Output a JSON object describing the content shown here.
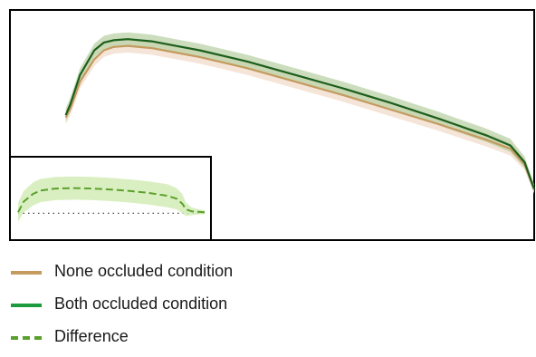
{
  "chart_data": {
    "type": "line",
    "main_panel": {
      "xlim": [
        0,
        100
      ],
      "ylim": [
        0,
        100
      ],
      "series": [
        {
          "name": "None occluded condition",
          "color": "#c59a5f",
          "band_color": "#f1dccb",
          "x": [
            2,
            3,
            5,
            8,
            10,
            12,
            15,
            20,
            25,
            30,
            40,
            50,
            60,
            70,
            80,
            90,
            95,
            98,
            100
          ],
          "y": [
            54,
            58,
            70,
            80,
            84,
            85.5,
            86,
            85,
            83,
            81,
            76,
            70,
            64,
            57.5,
            51,
            44,
            40,
            33,
            22
          ],
          "band": [
            3,
            3,
            3,
            3,
            3,
            3,
            3,
            3,
            3,
            3,
            3,
            3,
            3,
            3,
            3,
            3,
            3,
            2.5,
            2
          ]
        },
        {
          "name": "Both occluded condition",
          "color": "#1c5e1c",
          "band_color": "#b9d1a5",
          "x": [
            2,
            3,
            5,
            8,
            10,
            12,
            15,
            20,
            25,
            30,
            40,
            50,
            60,
            70,
            80,
            90,
            95,
            98,
            100
          ],
          "y": [
            55,
            60,
            73,
            84,
            87.5,
            88.5,
            89,
            88,
            86,
            84,
            79,
            73,
            67,
            60.5,
            53.5,
            46,
            41.5,
            34,
            22
          ],
          "band": [
            3,
            3,
            3,
            3,
            3,
            3,
            3,
            3,
            3,
            3,
            3,
            3,
            3,
            3,
            3,
            3,
            3,
            2.5,
            2
          ]
        }
      ]
    },
    "inset_panel": {
      "xlim": [
        0,
        100
      ],
      "ylim": [
        -1,
        5
      ],
      "baseline": 0,
      "series": [
        {
          "name": "Difference",
          "color": "#5aa02c",
          "band_color": "#d3ecb6",
          "style": "dashed",
          "x": [
            0,
            3,
            8,
            12,
            20,
            30,
            40,
            50,
            60,
            70,
            80,
            85,
            88,
            90,
            93,
            96,
            100
          ],
          "y": [
            0.1,
            1.2,
            2.0,
            2.35,
            2.55,
            2.6,
            2.55,
            2.45,
            2.3,
            2.1,
            1.8,
            1.5,
            1.0,
            0.4,
            0.2,
            0.15,
            0.1
          ],
          "band": [
            1.0,
            1.1,
            1.2,
            1.2,
            1.2,
            1.2,
            1.2,
            1.2,
            1.2,
            1.2,
            1.2,
            1.1,
            1.0,
            0.7,
            0.4,
            0.3,
            0.2
          ]
        }
      ]
    },
    "legend": {
      "position": "below",
      "entries": [
        {
          "label": "None occluded condition",
          "color": "#c59a5f",
          "style": "solid"
        },
        {
          "label": "Both occluded condition",
          "color": "#1c9a3e",
          "style": "solid"
        },
        {
          "label": "Difference",
          "color": "#5aa02c",
          "style": "dashed"
        }
      ]
    }
  }
}
